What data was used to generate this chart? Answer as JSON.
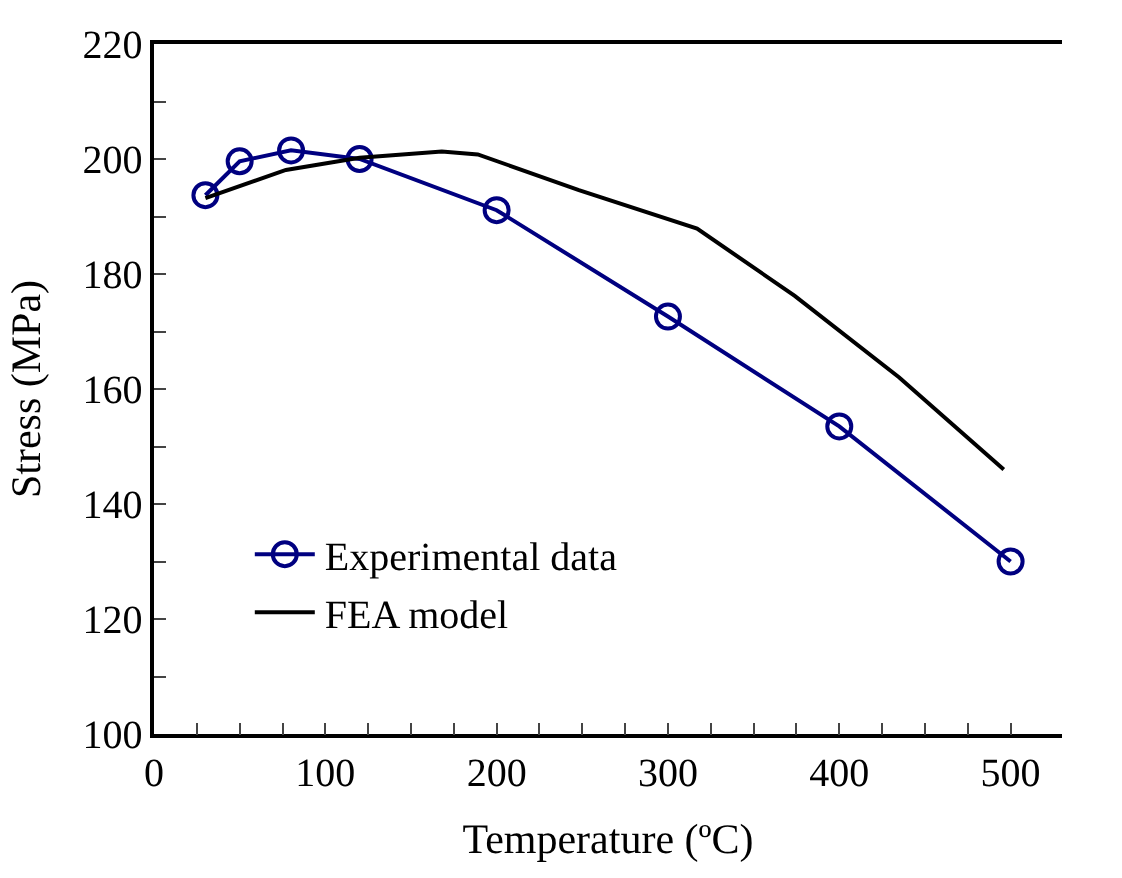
{
  "chart_data": {
    "type": "line",
    "xlabel": "Temperature (ºC)",
    "ylabel": "Stress (MPa)",
    "xlim": [
      0,
      530
    ],
    "xticks": [
      0,
      100,
      200,
      300,
      400,
      500,
      {
        "value": 25,
        "label": null
      },
      {
        "value": 50,
        "label": null
      },
      {
        "value": 75,
        "label": null
      },
      {
        "value": 125,
        "label": null
      },
      {
        "value": 150,
        "label": null
      },
      {
        "value": 175,
        "label": null
      },
      {
        "value": 225,
        "label": null
      },
      {
        "value": 250,
        "label": null
      },
      {
        "value": 275,
        "label": null
      },
      {
        "value": 325,
        "label": null
      },
      {
        "value": 350,
        "label": null
      },
      {
        "value": 375,
        "label": null
      },
      {
        "value": 425,
        "label": null
      },
      {
        "value": 450,
        "label": null
      },
      {
        "value": 475,
        "label": null
      }
    ],
    "ylim": [
      100,
      220
    ],
    "yticks": [
      100,
      120,
      140,
      160,
      180,
      200,
      220,
      {
        "value": 110,
        "label": null
      },
      {
        "value": 130,
        "label": null
      },
      {
        "value": 150,
        "label": null
      },
      {
        "value": 170,
        "label": null
      },
      {
        "value": 190,
        "label": null
      },
      {
        "value": 210,
        "label": null
      }
    ],
    "legend": "bottom left",
    "series": [
      {
        "name": "Experimental data",
        "color": "#000080",
        "marker": "circle",
        "x": [
          30,
          50,
          80,
          120,
          200,
          300,
          400,
          500
        ],
        "values": [
          193.7,
          199.6,
          201.5,
          200,
          191.1,
          172.6,
          153.5,
          130
        ]
      },
      {
        "name": "FEA model",
        "color": "#000000",
        "marker": "none",
        "x": [
          30,
          77,
          120,
          168,
          189,
          248,
          317,
          374,
          435,
          496
        ],
        "values": [
          193.2,
          198.1,
          200.2,
          201.3,
          200.8,
          194.6,
          187.9,
          176.2,
          162,
          146
        ]
      }
    ]
  }
}
